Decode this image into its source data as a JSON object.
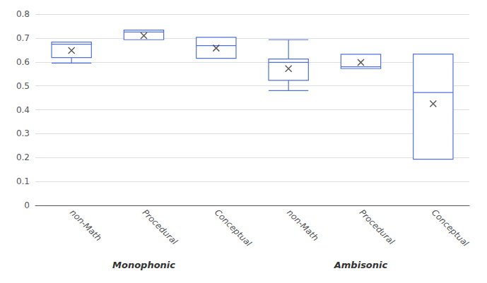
{
  "chart_data": {
    "type": "boxplot",
    "categories": [
      "non-Math",
      "Procedural",
      "Conceptual",
      "non-Math",
      "Procedural",
      "Conceptual"
    ],
    "groups": [
      "Monophonic",
      "Monophonic",
      "Monophonic",
      "Ambisonic",
      "Ambisonic",
      "Ambisonic"
    ],
    "values": [
      [
        0.595,
        0.618,
        0.674,
        0.683,
        0.683
      ],
      [
        0.693,
        0.693,
        0.725,
        0.733,
        0.733
      ],
      [
        0.615,
        0.615,
        0.668,
        0.703,
        0.703
      ],
      [
        0.48,
        0.523,
        0.598,
        0.612,
        0.693
      ],
      [
        0.572,
        0.572,
        0.58,
        0.632,
        0.632
      ],
      [
        0.193,
        0.193,
        0.472,
        0.633,
        0.633
      ]
    ],
    "means": [
      0.648,
      0.71,
      0.658,
      0.572,
      0.598,
      0.425
    ],
    "marker": "x",
    "ylim": [
      0,
      0.8
    ],
    "yticks": [
      0,
      0.1,
      0.2,
      0.3,
      0.4,
      0.5,
      0.6,
      0.7,
      0.8
    ],
    "grid": true
  }
}
